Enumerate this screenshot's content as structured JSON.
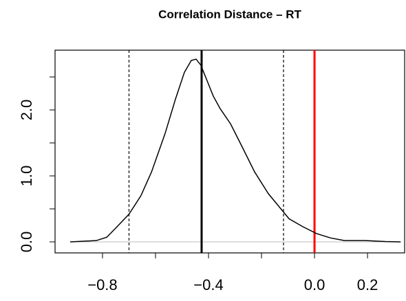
{
  "chart_data": {
    "type": "line",
    "title": "Correlation Distance – RT",
    "x": [
      -0.922,
      -0.823,
      -0.784,
      -0.745,
      -0.7,
      -0.655,
      -0.615,
      -0.564,
      -0.525,
      -0.491,
      -0.465,
      -0.447,
      -0.429,
      -0.408,
      -0.382,
      -0.356,
      -0.317,
      -0.278,
      -0.226,
      -0.174,
      -0.135,
      -0.096,
      -0.044,
      0.008,
      0.06,
      0.112,
      0.19,
      0.268,
      0.325
    ],
    "series": [
      {
        "color": "#000000",
        "values": [
          0,
          0.02,
          0.07,
          0.23,
          0.42,
          0.7,
          1.06,
          1.64,
          2.16,
          2.57,
          2.75,
          2.77,
          2.68,
          2.47,
          2.21,
          2.02,
          1.79,
          1.48,
          1.06,
          0.73,
          0.54,
          0.35,
          0.23,
          0.125,
          0.06,
          0.02,
          0.02,
          0.005,
          0
        ]
      }
    ],
    "xlim": [
      -0.979,
      0.34
    ],
    "ylim": [
      -0.167,
      2.906
    ],
    "xticks": [
      {
        "value": -0.8,
        "label": "−0.8"
      },
      {
        "value": -0.4,
        "label": "−0.4"
      },
      {
        "value": 0,
        "label": "0.0"
      },
      0.2
    ],
    "xminor_ticks": [
      -0.6,
      -0.2
    ],
    "yticks": [
      {
        "value": 0,
        "label": "0.0"
      },
      {
        "value": 1,
        "label": "1.0"
      },
      {
        "value": 2,
        "label": "2.0"
      }
    ],
    "yminor_ticks": [
      0.5,
      1.5,
      2.5
    ],
    "vlines": [
      {
        "value": -0.7,
        "color": "#000000",
        "dashed": true,
        "width": 1.2
      },
      {
        "value": -0.426,
        "color": "#000000",
        "dashed": false,
        "width": 3
      },
      {
        "value": -0.117,
        "color": "#000000",
        "dashed": true,
        "width": 1.2
      },
      {
        "value": 0,
        "color": "#ff0000",
        "dashed": false,
        "width": 3
      }
    ],
    "hlines": [
      {
        "value": 0,
        "color": "#bebebe"
      }
    ]
  }
}
